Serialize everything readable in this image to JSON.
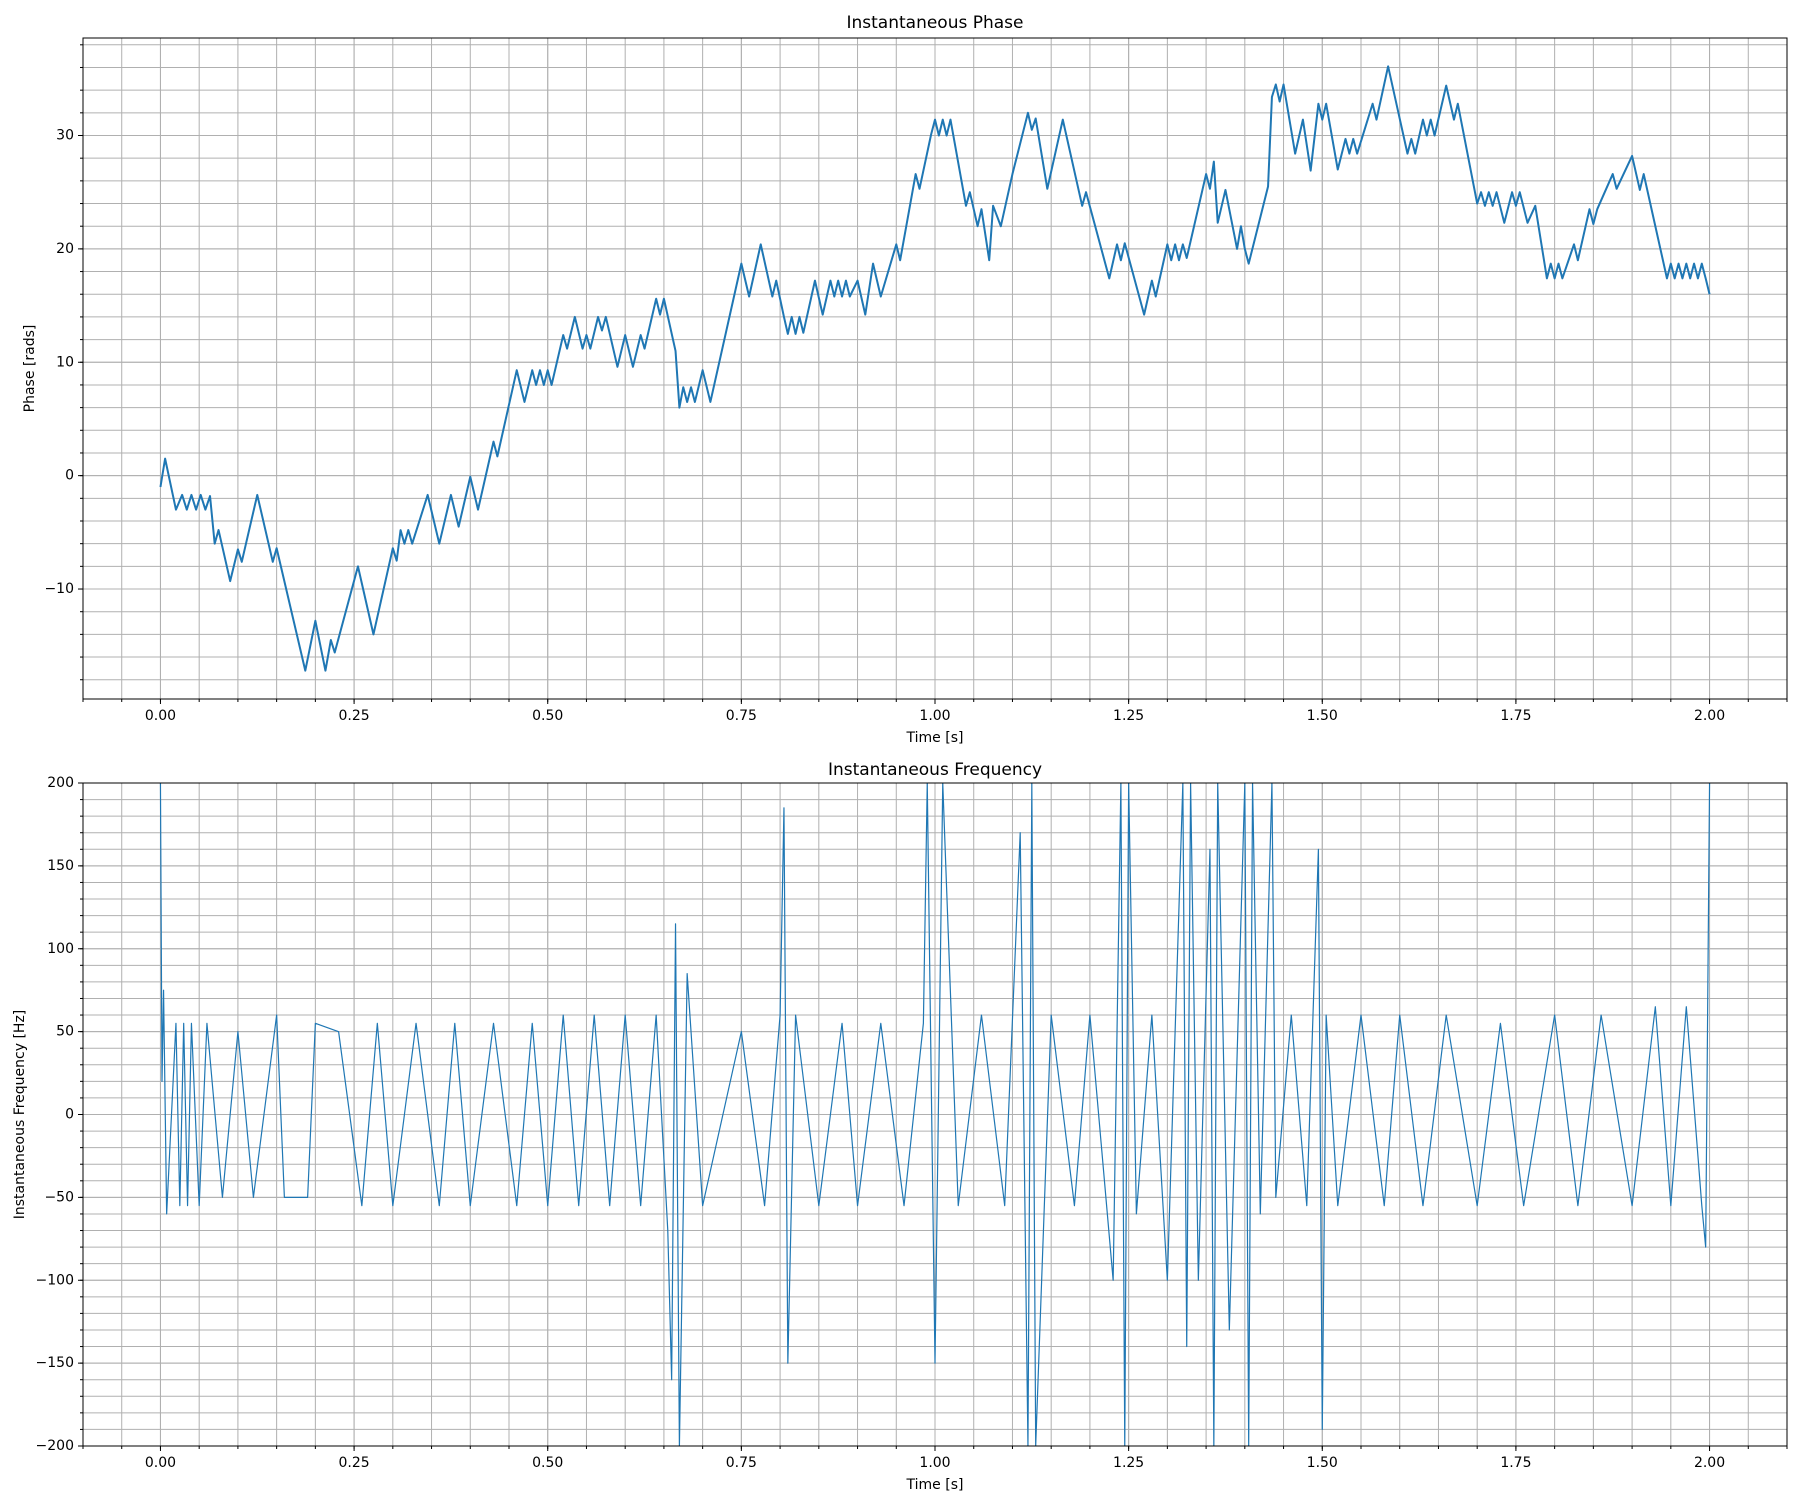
{
  "chart_data": [
    {
      "type": "line",
      "title": "Instantaneous Phase",
      "xlabel": "Time [s]",
      "ylabel": "Phase [rads]",
      "x": [
        0,
        0.006,
        0.02,
        0.028,
        0.034,
        0.04,
        0.046,
        0.052,
        0.058,
        0.064,
        0.07,
        0.075,
        0.09,
        0.1,
        0.105,
        0.125,
        0.145,
        0.15,
        0.187,
        0.2,
        0.213,
        0.22,
        0.225,
        0.255,
        0.275,
        0.3,
        0.305,
        0.31,
        0.315,
        0.32,
        0.325,
        0.345,
        0.36,
        0.375,
        0.385,
        0.4,
        0.41,
        0.43,
        0.435,
        0.46,
        0.47,
        0.48,
        0.485,
        0.49,
        0.495,
        0.5,
        0.505,
        0.52,
        0.525,
        0.535,
        0.545,
        0.55,
        0.555,
        0.565,
        0.57,
        0.575,
        0.59,
        0.6,
        0.61,
        0.62,
        0.625,
        0.64,
        0.645,
        0.65,
        0.665,
        0.67,
        0.675,
        0.68,
        0.685,
        0.69,
        0.7,
        0.71,
        0.75,
        0.76,
        0.775,
        0.79,
        0.795,
        0.805,
        0.81,
        0.815,
        0.82,
        0.825,
        0.83,
        0.845,
        0.855,
        0.865,
        0.87,
        0.875,
        0.88,
        0.885,
        0.89,
        0.9,
        0.91,
        0.92,
        0.93,
        0.95,
        0.955,
        0.975,
        0.98,
        0.995,
        1.0,
        1.005,
        1.01,
        1.015,
        1.02,
        1.04,
        1.045,
        1.055,
        1.06,
        1.07,
        1.075,
        1.085,
        1.1,
        1.12,
        1.125,
        1.13,
        1.145,
        1.165,
        1.19,
        1.195,
        1.225,
        1.235,
        1.24,
        1.245,
        1.27,
        1.28,
        1.285,
        1.3,
        1.305,
        1.31,
        1.315,
        1.32,
        1.325,
        1.35,
        1.355,
        1.36,
        1.365,
        1.375,
        1.39,
        1.395,
        1.4,
        1.405,
        1.43,
        1.435,
        1.44,
        1.445,
        1.45,
        1.465,
        1.475,
        1.485,
        1.495,
        1.5,
        1.505,
        1.52,
        1.53,
        1.535,
        1.54,
        1.545,
        1.565,
        1.57,
        1.585,
        1.61,
        1.615,
        1.62,
        1.63,
        1.635,
        1.64,
        1.645,
        1.66,
        1.67,
        1.675,
        1.7,
        1.705,
        1.71,
        1.715,
        1.72,
        1.725,
        1.735,
        1.745,
        1.75,
        1.755,
        1.765,
        1.775,
        1.79,
        1.795,
        1.8,
        1.805,
        1.81,
        1.825,
        1.83,
        1.845,
        1.85,
        1.855,
        1.875,
        1.88,
        1.9,
        1.91,
        1.915,
        1.945,
        1.95,
        1.955,
        1.96,
        1.965,
        1.97,
        1.975,
        1.98,
        1.985,
        1.99,
        1.995,
        2.0
      ],
      "series": [
        {
          "color": "#1f77b4",
          "values": [
            -1,
            1.5,
            -3,
            -1.7,
            -3,
            -1.7,
            -3,
            -1.7,
            -3,
            -1.8,
            -6,
            -4.8,
            -9.3,
            -6.5,
            -7.6,
            -1.7,
            -7.6,
            -6.4,
            -17.2,
            -12.8,
            -17.2,
            -14.5,
            -15.6,
            -8,
            -14,
            -6.4,
            -7.5,
            -4.8,
            -6,
            -4.8,
            -6,
            -1.7,
            -6,
            -1.7,
            -4.5,
            -0.1,
            -3,
            3,
            1.7,
            9.3,
            6.5,
            9.3,
            8,
            9.3,
            8,
            9.3,
            8,
            12.4,
            11.2,
            14,
            11.2,
            12.4,
            11.2,
            14,
            12.8,
            14,
            9.6,
            12.4,
            9.6,
            12.4,
            11.2,
            15.6,
            14.2,
            15.6,
            11,
            6,
            7.8,
            6.5,
            7.8,
            6.5,
            9.3,
            6.5,
            18.7,
            15.8,
            20.4,
            15.8,
            17.2,
            14,
            12.5,
            14,
            12.5,
            14,
            12.6,
            17.2,
            14.2,
            17.2,
            15.8,
            17.2,
            15.8,
            17.2,
            15.8,
            17.2,
            14.2,
            18.7,
            15.8,
            20.4,
            19,
            26.6,
            25.3,
            30.1,
            31.4,
            30,
            31.4,
            30,
            31.4,
            23.8,
            25,
            22,
            23.5,
            19,
            23.8,
            22,
            26.6,
            32,
            30.5,
            31.5,
            25.3,
            31.4,
            23.8,
            25,
            17.4,
            20.4,
            19,
            20.5,
            14.2,
            17.2,
            15.8,
            20.4,
            19,
            20.4,
            19,
            20.4,
            19.2,
            26.6,
            25.3,
            27.7,
            22.3,
            25.2,
            20,
            22,
            20,
            18.7,
            25.5,
            33.4,
            34.5,
            33,
            34.5,
            28.4,
            31.4,
            26.9,
            32.8,
            31.4,
            32.8,
            27,
            29.7,
            28.4,
            29.7,
            28.4,
            32.8,
            31.4,
            36.1,
            28.4,
            29.7,
            28.4,
            31.4,
            30,
            31.4,
            30,
            34.4,
            31.4,
            32.8,
            24,
            25,
            23.8,
            25,
            23.8,
            25,
            22.3,
            25,
            23.8,
            25,
            22.3,
            23.8,
            17.4,
            18.7,
            17.4,
            18.7,
            17.4,
            20.4,
            19,
            23.5,
            22.2,
            23.5,
            26.6,
            25.3,
            28.2,
            25.2,
            26.6,
            17.4,
            18.7,
            17.4,
            18.7,
            17.4,
            18.7,
            17.4,
            18.7,
            17.4,
            18.7,
            17.4,
            16
          ]
        }
      ],
      "xlim": [
        -0.1,
        2.1
      ],
      "ylim": [
        -19.7,
        38.6
      ],
      "xticks": [
        {
          "value": 0,
          "label": "0.00"
        },
        {
          "value": 0.25,
          "label": "0.25"
        },
        {
          "value": 0.5,
          "label": "0.50"
        },
        {
          "value": 0.75,
          "label": "0.75"
        },
        {
          "value": 1,
          "label": "1.00"
        },
        {
          "value": 1.25,
          "label": "1.25"
        },
        {
          "value": 1.5,
          "label": "1.50"
        },
        {
          "value": 1.75,
          "label": "1.75"
        },
        {
          "value": 2,
          "label": "2.00"
        }
      ],
      "yticks": [
        {
          "value": -10,
          "label": "−10"
        },
        0,
        10,
        20,
        30
      ],
      "minor_xticks": [
        -0.1,
        -0.05,
        0,
        0.05,
        0.1,
        0.15,
        0.2,
        0.25,
        0.3,
        0.35,
        0.4,
        0.45,
        0.5,
        0.55,
        0.6,
        0.65,
        0.7,
        0.75,
        0.8,
        0.85,
        0.9,
        0.95,
        1,
        1.05,
        1.1,
        1.15,
        1.2,
        1.25,
        1.3,
        1.35,
        1.4,
        1.45,
        1.5,
        1.55,
        1.6,
        1.65,
        1.7,
        1.75,
        1.8,
        1.85,
        1.9,
        1.95,
        2,
        2.05,
        2.1
      ],
      "minor_yticks": [
        -18,
        -16,
        -14,
        -12,
        -10,
        -8,
        -6,
        -4,
        -2,
        0,
        2,
        4,
        6,
        8,
        10,
        12,
        14,
        16,
        18,
        20,
        22,
        24,
        26,
        28,
        30,
        32,
        34,
        36,
        38
      ],
      "grid": true
    },
    {
      "type": "line",
      "title": "Instantaneous Frequency",
      "xlabel": "Time [s]",
      "ylabel": "Instantaneous Frequency [Hz]",
      "x": [
        0,
        0.002,
        0.004,
        0.008,
        0.02,
        0.025,
        0.03,
        0.035,
        0.04,
        0.05,
        0.06,
        0.08,
        0.1,
        0.12,
        0.15,
        0.16,
        0.19,
        0.2,
        0.23,
        0.26,
        0.28,
        0.3,
        0.33,
        0.36,
        0.38,
        0.4,
        0.43,
        0.46,
        0.48,
        0.5,
        0.52,
        0.54,
        0.56,
        0.58,
        0.6,
        0.62,
        0.64,
        0.655,
        0.66,
        0.665,
        0.67,
        0.68,
        0.7,
        0.75,
        0.78,
        0.8,
        0.805,
        0.81,
        0.82,
        0.85,
        0.88,
        0.9,
        0.93,
        0.96,
        0.985,
        0.99,
        1.0,
        1.01,
        1.03,
        1.06,
        1.09,
        1.11,
        1.12,
        1.125,
        1.13,
        1.15,
        1.18,
        1.2,
        1.23,
        1.24,
        1.245,
        1.25,
        1.26,
        1.28,
        1.3,
        1.32,
        1.325,
        1.33,
        1.34,
        1.355,
        1.36,
        1.365,
        1.38,
        1.4,
        1.405,
        1.41,
        1.42,
        1.435,
        1.44,
        1.46,
        1.48,
        1.495,
        1.5,
        1.505,
        1.52,
        1.55,
        1.58,
        1.6,
        1.63,
        1.66,
        1.7,
        1.73,
        1.76,
        1.8,
        1.83,
        1.86,
        1.9,
        1.93,
        1.95,
        1.97,
        1.99,
        1.995,
        2.0
      ],
      "series": [
        {
          "color": "#1f77b4",
          "values": [
            200,
            20,
            75,
            -60,
            55,
            -55,
            55,
            -55,
            55,
            -55,
            55,
            -50,
            50,
            -50,
            60,
            -50,
            -50,
            55,
            50,
            -55,
            55,
            -55,
            55,
            -55,
            55,
            -55,
            55,
            -55,
            55,
            -55,
            60,
            -55,
            60,
            -55,
            60,
            -55,
            60,
            -70,
            -160,
            115,
            -200,
            85,
            -55,
            50,
            -55,
            60,
            185,
            -150,
            60,
            -55,
            55,
            -55,
            55,
            -55,
            55,
            200,
            -150,
            200,
            -55,
            60,
            -55,
            170,
            -200,
            200,
            -200,
            60,
            -55,
            60,
            -100,
            200,
            -200,
            200,
            -60,
            60,
            -100,
            200,
            -140,
            200,
            -100,
            160,
            -200,
            200,
            -130,
            200,
            -200,
            200,
            -60,
            200,
            -50,
            60,
            -55,
            160,
            -190,
            60,
            -55,
            60,
            -55,
            60,
            -55,
            60,
            -55,
            55,
            -55,
            60,
            -55,
            60,
            -55,
            65,
            -55,
            65,
            -55,
            -80,
            200
          ]
        }
      ],
      "xlim": [
        -0.1,
        2.1
      ],
      "ylim": [
        -200,
        200
      ],
      "xticks": [
        {
          "value": 0,
          "label": "0.00"
        },
        {
          "value": 0.25,
          "label": "0.25"
        },
        {
          "value": 0.5,
          "label": "0.50"
        },
        {
          "value": 0.75,
          "label": "0.75"
        },
        {
          "value": 1,
          "label": "1.00"
        },
        {
          "value": 1.25,
          "label": "1.25"
        },
        {
          "value": 1.5,
          "label": "1.50"
        },
        {
          "value": 1.75,
          "label": "1.75"
        },
        {
          "value": 2,
          "label": "2.00"
        }
      ],
      "yticks": [
        {
          "value": -200,
          "label": "−200"
        },
        {
          "value": -150,
          "label": "−150"
        },
        {
          "value": -100,
          "label": "−100"
        },
        {
          "value": -50,
          "label": "−50"
        },
        0,
        50,
        100,
        150,
        200
      ],
      "minor_xticks": [
        -0.1,
        -0.05,
        0,
        0.05,
        0.1,
        0.15,
        0.2,
        0.25,
        0.3,
        0.35,
        0.4,
        0.45,
        0.5,
        0.55,
        0.6,
        0.65,
        0.7,
        0.75,
        0.8,
        0.85,
        0.9,
        0.95,
        1,
        1.05,
        1.1,
        1.15,
        1.2,
        1.25,
        1.3,
        1.35,
        1.4,
        1.45,
        1.5,
        1.55,
        1.6,
        1.65,
        1.7,
        1.75,
        1.8,
        1.85,
        1.9,
        1.95,
        2,
        2.05,
        2.1
      ],
      "minor_yticks": [
        -200,
        -190,
        -180,
        -170,
        -160,
        -150,
        -140,
        -130,
        -120,
        -110,
        -100,
        -90,
        -80,
        -70,
        -60,
        -50,
        -40,
        -30,
        -20,
        -10,
        0,
        10,
        20,
        30,
        40,
        50,
        60,
        70,
        80,
        90,
        100,
        110,
        120,
        130,
        140,
        150,
        160,
        170,
        180,
        190,
        200
      ],
      "grid": true
    }
  ]
}
